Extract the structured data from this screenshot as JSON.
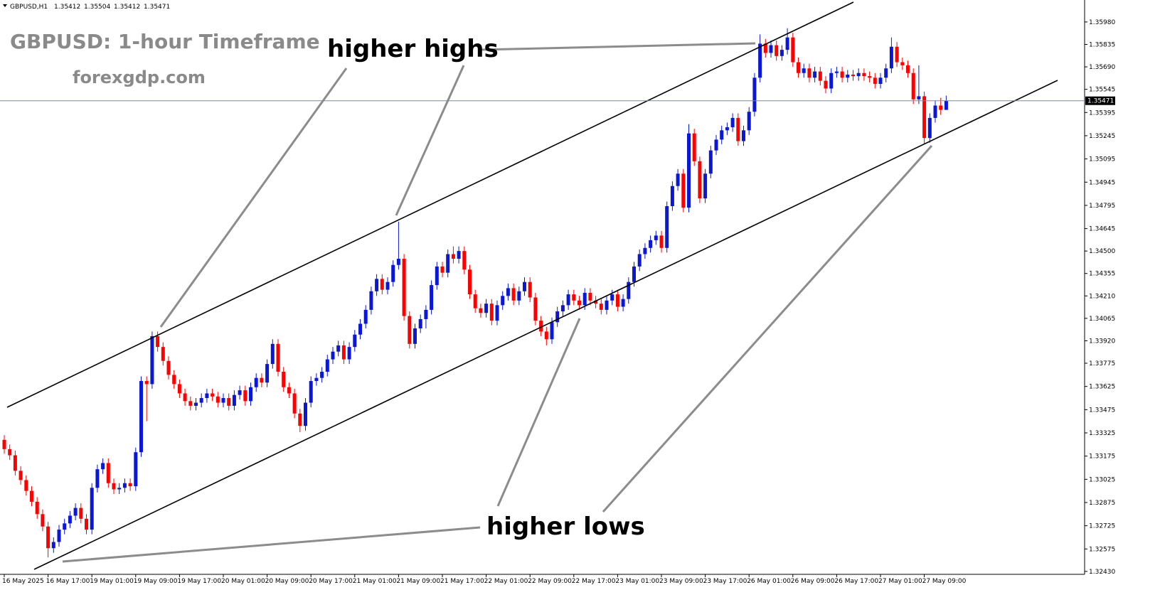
{
  "chart_data": {
    "type": "candlestick",
    "symbol": "GBPUSD,H1",
    "title": "GBPUSD: 1-hour Timeframe",
    "subtitle": "forexgdp.com",
    "annotations": [
      "higher highs",
      "higher lows"
    ],
    "bull_color": "#0a17d6",
    "bear_color": "#ff0000",
    "ylim": [
      1.32411,
      1.36122
    ],
    "yticks": [
      {
        "value": 1.3598,
        "label": "1.35980"
      },
      1.35835,
      {
        "value": 1.3569,
        "label": "1.35690"
      },
      1.35545,
      1.35395,
      1.35245,
      1.35095,
      1.34945,
      1.34795,
      1.34645,
      {
        "value": 1.345,
        "label": "1.34500"
      },
      1.34355,
      {
        "value": 1.3421,
        "label": "1.34210"
      },
      1.34065,
      {
        "value": 1.3392,
        "label": "1.33920"
      },
      1.33775,
      1.33625,
      1.33475,
      1.33325,
      1.33175,
      1.33025,
      1.32875,
      1.32725,
      1.32575,
      {
        "value": 1.3243,
        "label": "1.32430"
      }
    ],
    "categories": [
      "16 May 2025",
      null,
      null,
      null,
      null,
      null,
      null,
      null,
      "16 May 17:00",
      null,
      null,
      null,
      null,
      null,
      null,
      null,
      "19 May 01:00",
      null,
      null,
      null,
      null,
      null,
      null,
      null,
      "19 May 09:00",
      null,
      null,
      null,
      null,
      null,
      null,
      null,
      "19 May 17:00",
      null,
      null,
      null,
      null,
      null,
      null,
      null,
      "20 May 01:00",
      null,
      null,
      null,
      null,
      null,
      null,
      null,
      "20 May 09:00",
      null,
      null,
      null,
      null,
      null,
      null,
      null,
      "20 May 17:00",
      null,
      null,
      null,
      null,
      null,
      null,
      null,
      "21 May 01:00",
      null,
      null,
      null,
      null,
      null,
      null,
      null,
      "21 May 09:00",
      null,
      null,
      null,
      null,
      null,
      null,
      null,
      "21 May 17:00",
      null,
      null,
      null,
      null,
      null,
      null,
      null,
      "22 May 01:00",
      null,
      null,
      null,
      null,
      null,
      null,
      null,
      "22 May 09:00",
      null,
      null,
      null,
      null,
      null,
      null,
      null,
      "22 May 17:00",
      null,
      null,
      null,
      null,
      null,
      null,
      null,
      "23 May 01:00",
      null,
      null,
      null,
      null,
      null,
      null,
      null,
      "23 May 09:00",
      null,
      null,
      null,
      null,
      null,
      null,
      null,
      "23 May 17:00",
      null,
      null,
      null,
      null,
      null,
      null,
      null,
      "26 May 01:00",
      null,
      null,
      null,
      null,
      null,
      null,
      null,
      "26 May 09:00",
      null,
      null,
      null,
      null,
      null,
      null,
      null,
      "26 May 17:00",
      null,
      null,
      null,
      null,
      null,
      null,
      null,
      "27 May 01:00",
      null,
      null,
      null,
      null,
      null,
      null,
      null,
      "27 May 09:00",
      null,
      null,
      null,
      null
    ],
    "open": [
      1.3328,
      1.3322,
      1.3318,
      1.3308,
      1.3302,
      1.3295,
      1.3288,
      1.328,
      1.3272,
      1.3258,
      1.3262,
      1.327,
      1.3274,
      1.3279,
      1.3284,
      1.3277,
      1.327,
      1.3297,
      1.3309,
      1.3313,
      1.33,
      1.3296,
      1.3297,
      1.33,
      1.3298,
      1.332,
      1.3366,
      1.3364,
      1.3395,
      1.3388,
      1.3379,
      1.337,
      1.3364,
      1.3358,
      1.3353,
      1.335,
      1.3352,
      1.3355,
      1.3358,
      1.3356,
      1.3352,
      1.3355,
      1.335,
      1.3357,
      1.336,
      1.3353,
      1.3362,
      1.3368,
      1.3365,
      1.3377,
      1.339,
      1.3372,
      1.3362,
      1.3358,
      1.3345,
      1.3337,
      1.3352,
      1.3366,
      1.3368,
      1.3372,
      1.338,
      1.3385,
      1.3389,
      1.338,
      1.3388,
      1.3396,
      1.3403,
      1.3412,
      1.3424,
      1.3432,
      1.3425,
      1.343,
      1.3441,
      1.3445,
      1.3408,
      1.339,
      1.34,
      1.3406,
      1.3412,
      1.3428,
      1.344,
      1.3436,
      1.3448,
      1.3445,
      1.345,
      1.3438,
      1.3422,
      1.3413,
      1.341,
      1.3416,
      1.3405,
      1.3415,
      1.3421,
      1.3426,
      1.3418,
      1.3424,
      1.343,
      1.342,
      1.3405,
      1.3398,
      1.3393,
      1.3404,
      1.3411,
      1.3415,
      1.3422,
      1.3418,
      1.3415,
      1.3423,
      1.3418,
      1.3416,
      1.3412,
      1.3418,
      1.3422,
      1.3414,
      1.3419,
      1.343,
      1.344,
      1.3448,
      1.3452,
      1.3457,
      1.346,
      1.3452,
      1.3479,
      1.3492,
      1.35,
      1.3478,
      1.3526,
      1.3508,
      1.3484,
      1.35,
      1.3515,
      1.3522,
      1.3528,
      1.353,
      1.3536,
      1.3521,
      1.3528,
      1.354,
      1.3562,
      1.3584,
      1.3578,
      1.3583,
      1.3576,
      1.358,
      1.3588,
      1.3572,
      1.3565,
      1.3568,
      1.3562,
      1.3566,
      1.356,
      1.3555,
      1.3565,
      1.3566,
      1.3562,
      1.3564,
      1.3563,
      1.3565,
      1.3563,
      1.3562,
      1.3558,
      1.3562,
      1.3568,
      1.3582,
      1.3572,
      1.357,
      1.3565,
      1.3548,
      1.355,
      1.3523,
      1.3536,
      1.3544,
      1.35412
    ],
    "high": [
      1.3331,
      1.3325,
      1.3321,
      1.3311,
      1.3305,
      1.3298,
      1.3291,
      1.3283,
      1.3275,
      1.3265,
      1.3273,
      1.3277,
      1.3282,
      1.3287,
      1.3287,
      1.328,
      1.33,
      1.3312,
      1.3316,
      1.3316,
      1.3303,
      1.33,
      1.3303,
      1.3303,
      1.3323,
      1.3369,
      1.3369,
      1.3398,
      1.3398,
      1.3391,
      1.3382,
      1.3373,
      1.3367,
      1.3361,
      1.3356,
      1.3355,
      1.3358,
      1.3361,
      1.3361,
      1.3359,
      1.3358,
      1.3358,
      1.336,
      1.3363,
      1.3363,
      1.3365,
      1.3371,
      1.3371,
      1.338,
      1.3393,
      1.3393,
      1.3375,
      1.3365,
      1.3361,
      1.3348,
      1.3355,
      1.3369,
      1.3371,
      1.3375,
      1.3383,
      1.3388,
      1.3392,
      1.3392,
      1.3391,
      1.3399,
      1.3406,
      1.3415,
      1.3427,
      1.3435,
      1.3435,
      1.3433,
      1.3444,
      1.3469,
      1.3448,
      1.3411,
      1.3403,
      1.3409,
      1.3415,
      1.3431,
      1.3443,
      1.3443,
      1.3451,
      1.3453,
      1.3453,
      1.3453,
      1.3441,
      1.3425,
      1.3416,
      1.3419,
      1.3419,
      1.3418,
      1.3424,
      1.3429,
      1.3429,
      1.3427,
      1.3433,
      1.3433,
      1.3423,
      1.3408,
      1.3401,
      1.3407,
      1.3414,
      1.3418,
      1.3425,
      1.3425,
      1.3421,
      1.3426,
      1.3426,
      1.3421,
      1.3419,
      1.3421,
      1.3425,
      1.3425,
      1.3422,
      1.3433,
      1.3443,
      1.3451,
      1.3455,
      1.346,
      1.3463,
      1.3463,
      1.3482,
      1.3495,
      1.3503,
      1.3503,
      1.3532,
      1.3529,
      1.3511,
      1.3503,
      1.3518,
      1.3525,
      1.3531,
      1.3533,
      1.3539,
      1.3539,
      1.3531,
      1.3543,
      1.3565,
      1.359,
      1.3587,
      1.3586,
      1.3586,
      1.3583,
      1.3594,
      1.3591,
      1.3575,
      1.3571,
      1.3571,
      1.3569,
      1.3569,
      1.3563,
      1.3568,
      1.3569,
      1.3569,
      1.3567,
      1.3567,
      1.3568,
      1.3568,
      1.3566,
      1.3565,
      1.3565,
      1.3571,
      1.3588,
      1.3585,
      1.3575,
      1.3573,
      1.3568,
      1.357,
      1.3553,
      1.3539,
      1.3547,
      1.3549,
      1.35504
    ],
    "low": [
      1.3319,
      1.3315,
      1.3305,
      1.3299,
      1.3292,
      1.3285,
      1.3277,
      1.3269,
      1.3252,
      1.3255,
      1.3259,
      1.3267,
      1.3271,
      1.3276,
      1.3274,
      1.3267,
      1.3267,
      1.3294,
      1.3306,
      1.3297,
      1.3293,
      1.3293,
      1.3294,
      1.3295,
      1.3295,
      1.3317,
      1.334,
      1.3361,
      1.3385,
      1.3376,
      1.3367,
      1.3361,
      1.3355,
      1.335,
      1.3347,
      1.3347,
      1.3349,
      1.3352,
      1.3353,
      1.3349,
      1.3349,
      1.3347,
      1.3347,
      1.3354,
      1.335,
      1.335,
      1.3359,
      1.3362,
      1.3362,
      1.3374,
      1.3369,
      1.3359,
      1.3355,
      1.3342,
      1.3333,
      1.3334,
      1.3349,
      1.3363,
      1.3365,
      1.3369,
      1.3377,
      1.3382,
      1.3377,
      1.3377,
      1.3385,
      1.3393,
      1.34,
      1.3409,
      1.3421,
      1.3422,
      1.3422,
      1.3427,
      1.3438,
      1.3405,
      1.3387,
      1.3387,
      1.3397,
      1.34,
      1.3409,
      1.3425,
      1.3433,
      1.3433,
      1.3442,
      1.3442,
      1.3435,
      1.3419,
      1.341,
      1.3407,
      1.3407,
      1.3402,
      1.3402,
      1.3412,
      1.3418,
      1.3415,
      1.3415,
      1.3421,
      1.3417,
      1.3402,
      1.3395,
      1.3389,
      1.339,
      1.3401,
      1.3408,
      1.3412,
      1.3415,
      1.3412,
      1.3412,
      1.3415,
      1.3413,
      1.3409,
      1.3409,
      1.3415,
      1.3411,
      1.3411,
      1.3416,
      1.3427,
      1.3437,
      1.3445,
      1.3449,
      1.3454,
      1.3449,
      1.3449,
      1.3476,
      1.3489,
      1.3475,
      1.3475,
      1.3505,
      1.3481,
      1.3481,
      1.3497,
      1.3512,
      1.3519,
      1.3525,
      1.3527,
      1.3518,
      1.3518,
      1.3525,
      1.3537,
      1.3559,
      1.3575,
      1.3575,
      1.3573,
      1.3573,
      1.3577,
      1.3569,
      1.3562,
      1.3562,
      1.3559,
      1.3559,
      1.3557,
      1.3552,
      1.3552,
      1.3562,
      1.3559,
      1.3559,
      1.356,
      1.356,
      1.356,
      1.3559,
      1.3555,
      1.3555,
      1.3559,
      1.3565,
      1.3569,
      1.3567,
      1.3562,
      1.3545,
      1.3545,
      1.3519,
      1.352,
      1.3533,
      1.3538,
      1.35412
    ],
    "close": [
      1.3322,
      1.3318,
      1.3308,
      1.3302,
      1.3295,
      1.3288,
      1.328,
      1.3272,
      1.3258,
      1.3262,
      1.327,
      1.3274,
      1.3279,
      1.3284,
      1.3277,
      1.327,
      1.3297,
      1.3309,
      1.3313,
      1.33,
      1.3296,
      1.3297,
      1.33,
      1.3298,
      1.332,
      1.3366,
      1.3364,
      1.3395,
      1.3388,
      1.3379,
      1.337,
      1.3364,
      1.3358,
      1.3353,
      1.335,
      1.3352,
      1.3355,
      1.3358,
      1.3356,
      1.3352,
      1.3355,
      1.335,
      1.3357,
      1.336,
      1.3353,
      1.3362,
      1.3368,
      1.3365,
      1.3377,
      1.339,
      1.3372,
      1.3362,
      1.3358,
      1.3345,
      1.3337,
      1.3352,
      1.3366,
      1.3368,
      1.3372,
      1.338,
      1.3385,
      1.3389,
      1.338,
      1.3388,
      1.3396,
      1.3403,
      1.3412,
      1.3424,
      1.3432,
      1.3425,
      1.343,
      1.3441,
      1.3445,
      1.3408,
      1.339,
      1.34,
      1.3406,
      1.3412,
      1.3428,
      1.344,
      1.3436,
      1.3448,
      1.3445,
      1.345,
      1.3438,
      1.3422,
      1.3413,
      1.341,
      1.3416,
      1.3405,
      1.3415,
      1.3421,
      1.3426,
      1.3418,
      1.3424,
      1.343,
      1.342,
      1.3405,
      1.3398,
      1.3393,
      1.3404,
      1.3411,
      1.3415,
      1.3422,
      1.3418,
      1.3415,
      1.3423,
      1.3418,
      1.3416,
      1.3412,
      1.3418,
      1.3422,
      1.3414,
      1.3419,
      1.343,
      1.344,
      1.3448,
      1.3452,
      1.3457,
      1.346,
      1.3452,
      1.3479,
      1.3492,
      1.35,
      1.3478,
      1.3526,
      1.3508,
      1.3484,
      1.35,
      1.3515,
      1.3522,
      1.3528,
      1.353,
      1.3536,
      1.3521,
      1.3528,
      1.354,
      1.3562,
      1.3584,
      1.3578,
      1.3583,
      1.3576,
      1.358,
      1.3588,
      1.3572,
      1.3565,
      1.3568,
      1.3562,
      1.3566,
      1.356,
      1.3555,
      1.3565,
      1.3566,
      1.3562,
      1.3564,
      1.3563,
      1.3565,
      1.3563,
      1.3562,
      1.3558,
      1.3562,
      1.3568,
      1.3582,
      1.3572,
      1.357,
      1.3565,
      1.3548,
      1.355,
      1.3523,
      1.3536,
      1.3544,
      1.35412,
      1.35471
    ]
  }
}
